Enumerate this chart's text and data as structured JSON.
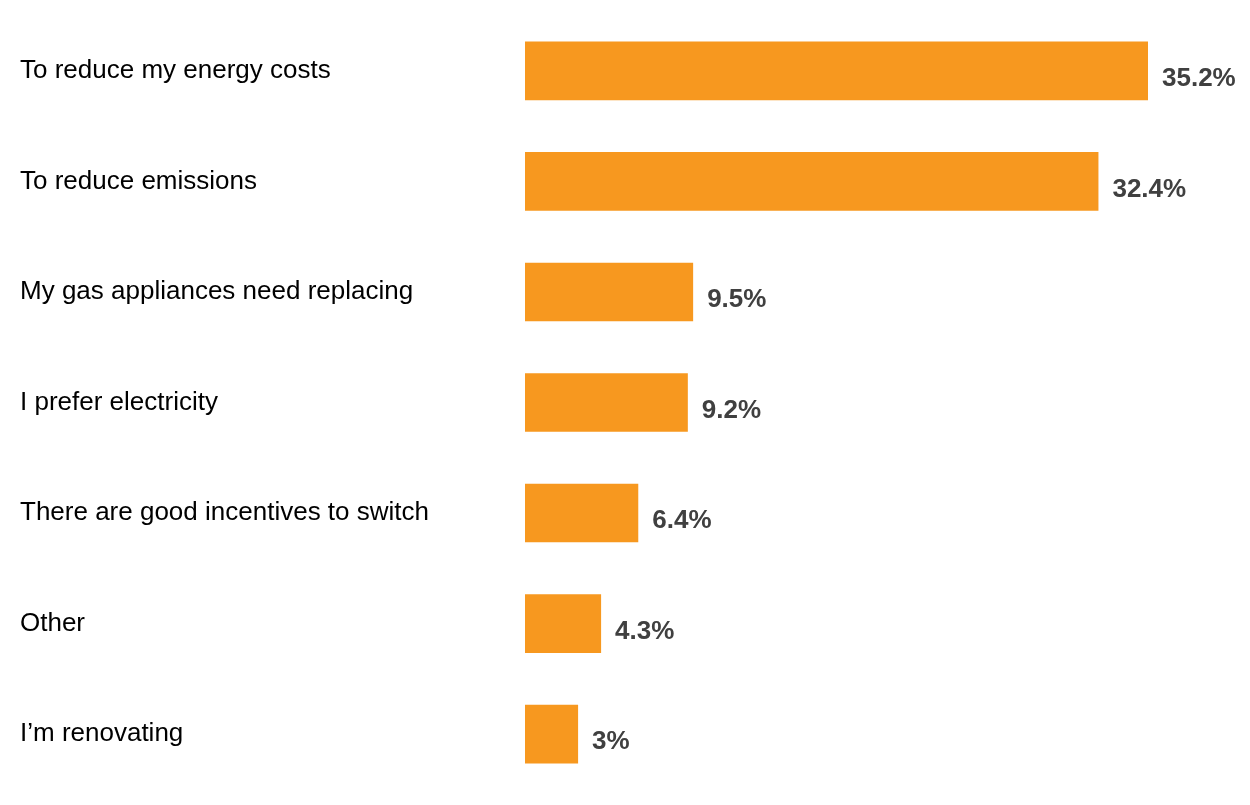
{
  "chart_data": {
    "type": "bar",
    "orientation": "horizontal",
    "categories": [
      "To reduce my energy costs",
      "To reduce emissions",
      "My gas appliances need replacing",
      "I prefer electricity",
      "There are good incentives to switch",
      "Other",
      "I’m renovating"
    ],
    "values": [
      35.2,
      32.4,
      9.5,
      9.2,
      6.4,
      4.3,
      3
    ],
    "value_labels": [
      "35.2%",
      "32.4%",
      "9.5%",
      "9.2%",
      "6.4%",
      "4.3%",
      "3%"
    ],
    "color": "#f7981f",
    "grid": false,
    "legend": false
  }
}
